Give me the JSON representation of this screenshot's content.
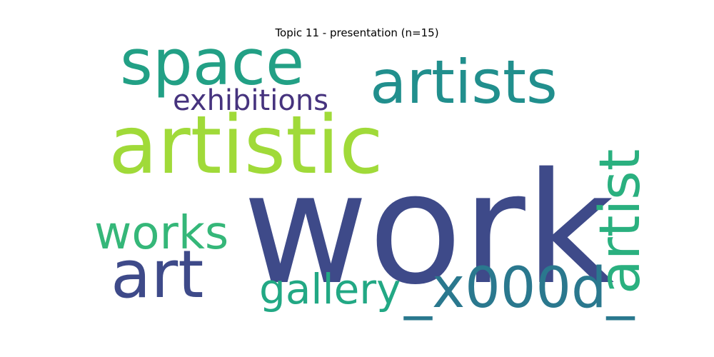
{
  "chart_data": {
    "type": "wordcloud",
    "title": "Topic 11 - presentation (n=15)",
    "words": [
      {
        "text": "work",
        "color": "#3e4a89"
      },
      {
        "text": "artistic",
        "color": "#a0da39"
      },
      {
        "text": "space",
        "color": "#22a085"
      },
      {
        "text": "artists",
        "color": "#218f8d"
      },
      {
        "text": "exhibitions",
        "color": "#46337e"
      },
      {
        "text": "art",
        "color": "#3e4a89"
      },
      {
        "text": "works",
        "color": "#35b779"
      },
      {
        "text": "gallery",
        "color": "#22a884"
      },
      {
        "text": "_x000d_",
        "color": "#2a788e"
      },
      {
        "text": "artist",
        "color": "#2ab07f"
      }
    ]
  }
}
